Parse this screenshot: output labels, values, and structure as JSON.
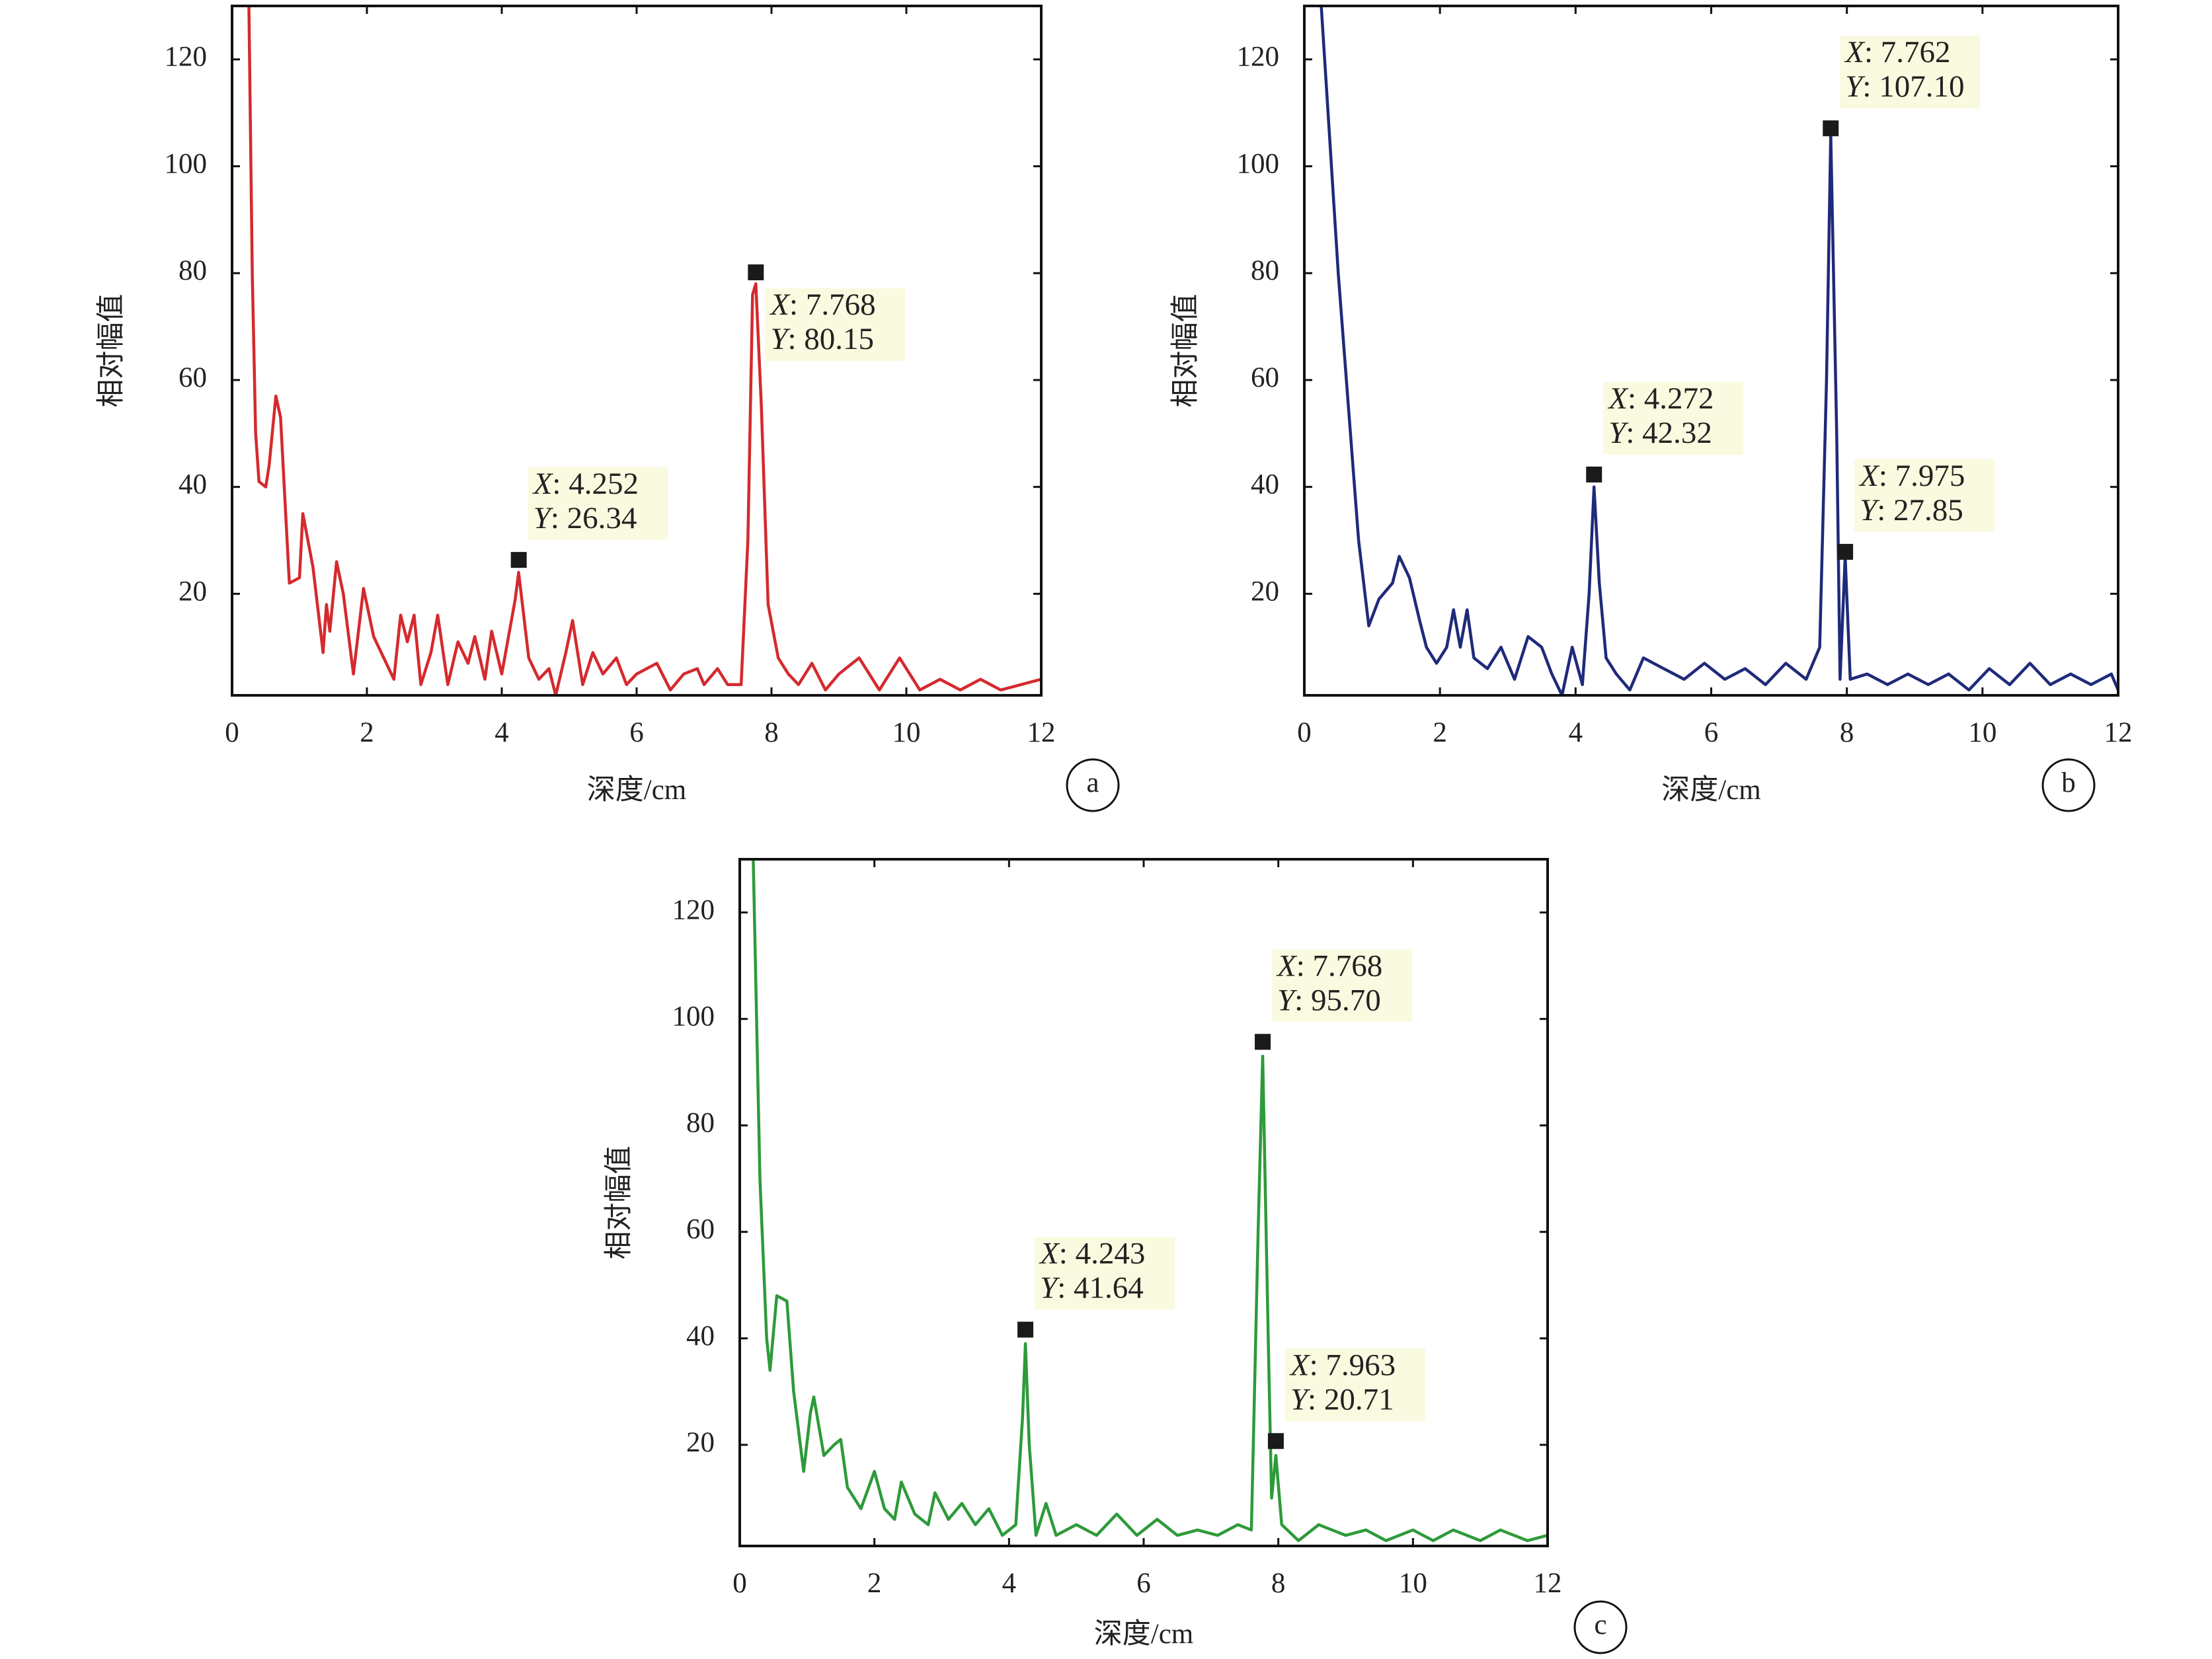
{
  "chart_data": [
    {
      "type": "line",
      "panel_label": "a",
      "x_label": "深度/cm",
      "y_label": "相对幅值",
      "color": "#d42a2e",
      "xlim": [
        0,
        12
      ],
      "ylim": [
        1,
        130
      ],
      "xticks": [
        0,
        2,
        4,
        6,
        8,
        10,
        12
      ],
      "yticks": [
        20,
        40,
        60,
        80,
        100,
        120
      ],
      "x": [
        0.25,
        0.3,
        0.35,
        0.4,
        0.5,
        0.55,
        0.65,
        0.72,
        0.85,
        1.0,
        1.05,
        1.2,
        1.35,
        1.4,
        1.45,
        1.55,
        1.65,
        1.8,
        1.95,
        2.1,
        2.25,
        2.4,
        2.5,
        2.6,
        2.7,
        2.8,
        2.95,
        3.05,
        3.2,
        3.35,
        3.5,
        3.6,
        3.75,
        3.85,
        4.0,
        4.1,
        4.2,
        4.25,
        4.4,
        4.55,
        4.7,
        4.8,
        4.95,
        5.05,
        5.2,
        5.35,
        5.5,
        5.7,
        5.85,
        6.0,
        6.3,
        6.5,
        6.7,
        6.9,
        7.0,
        7.2,
        7.35,
        7.55,
        7.65,
        7.72,
        7.768,
        7.85,
        7.95,
        8.1,
        8.25,
        8.4,
        8.6,
        8.8,
        9.0,
        9.3,
        9.6,
        9.9,
        10.2,
        10.5,
        10.8,
        11.1,
        11.4,
        11.7,
        12.0
      ],
      "values": [
        130,
        80,
        50,
        41,
        40,
        44,
        57,
        53,
        22,
        23,
        35,
        25,
        9,
        18,
        13,
        26,
        20,
        5,
        21,
        12,
        8,
        4,
        16,
        11,
        16,
        3,
        9,
        16,
        3,
        11,
        7,
        12,
        4,
        13,
        5,
        12,
        19,
        24,
        8,
        4,
        6,
        1,
        9,
        15,
        3,
        9,
        5,
        8,
        3,
        5,
        7,
        2,
        5,
        6,
        3,
        6,
        3,
        3,
        30,
        76,
        78,
        55,
        18,
        8,
        5,
        3,
        7,
        2,
        5,
        8,
        2,
        8,
        2,
        4,
        2,
        4,
        2,
        3,
        4
      ],
      "annotations": [
        {
          "x": 4.252,
          "y": 26.34,
          "label": [
            "X: 4.252",
            "Y: 26.34"
          ]
        },
        {
          "x": 7.768,
          "y": 80.15,
          "label": [
            "X: 7.768",
            "Y: 80.15"
          ]
        }
      ]
    },
    {
      "type": "line",
      "panel_label": "b",
      "x_label": "深度/cm",
      "y_label": "相对幅值",
      "color": "#1f2a7a",
      "xlim": [
        0,
        12
      ],
      "ylim": [
        1,
        130
      ],
      "xticks": [
        0,
        2,
        4,
        6,
        8,
        10,
        12
      ],
      "yticks": [
        20,
        40,
        60,
        80,
        100,
        120
      ],
      "x": [
        0.25,
        0.35,
        0.5,
        0.65,
        0.8,
        0.95,
        1.1,
        1.3,
        1.4,
        1.55,
        1.7,
        1.8,
        1.95,
        2.1,
        2.2,
        2.3,
        2.4,
        2.5,
        2.7,
        2.9,
        3.1,
        3.3,
        3.5,
        3.65,
        3.8,
        3.95,
        4.1,
        4.2,
        4.272,
        4.35,
        4.45,
        4.6,
        4.8,
        5.0,
        5.3,
        5.6,
        5.9,
        6.2,
        6.5,
        6.8,
        7.1,
        7.4,
        7.6,
        7.7,
        7.762,
        7.85,
        7.9,
        7.975,
        8.05,
        8.3,
        8.6,
        8.9,
        9.2,
        9.5,
        9.8,
        10.1,
        10.4,
        10.7,
        11.0,
        11.3,
        11.6,
        11.9,
        12.0
      ],
      "values": [
        130,
        110,
        80,
        55,
        30,
        14,
        19,
        22,
        27,
        23,
        15,
        10,
        7,
        10,
        17,
        10,
        17,
        8,
        6,
        10,
        4,
        12,
        10,
        5,
        1,
        10,
        3,
        20,
        40,
        22,
        8,
        5,
        2,
        8,
        6,
        4,
        7,
        4,
        6,
        3,
        7,
        4,
        10,
        60,
        106,
        50,
        4,
        27,
        4,
        5,
        3,
        5,
        3,
        5,
        2,
        6,
        3,
        7,
        3,
        5,
        3,
        5,
        2
      ],
      "annotations": [
        {
          "x": 4.272,
          "y": 42.32,
          "label": [
            "X: 4.272",
            "Y: 42.32"
          ]
        },
        {
          "x": 7.762,
          "y": 107.1,
          "label": [
            "X: 7.762",
            "Y: 107.10"
          ]
        },
        {
          "x": 7.975,
          "y": 27.85,
          "label": [
            "X: 7.975",
            "Y: 27.85"
          ]
        }
      ]
    },
    {
      "type": "line",
      "panel_label": "c",
      "x_label": "深度/cm",
      "y_label": "相对幅值",
      "color": "#2e9a3a",
      "xlim": [
        0,
        12
      ],
      "ylim": [
        1,
        130
      ],
      "xticks": [
        0,
        2,
        4,
        6,
        8,
        10,
        12
      ],
      "yticks": [
        20,
        40,
        60,
        80,
        100,
        120
      ],
      "x": [
        0.2,
        0.3,
        0.4,
        0.45,
        0.55,
        0.7,
        0.8,
        0.95,
        1.05,
        1.1,
        1.25,
        1.4,
        1.5,
        1.6,
        1.8,
        2.0,
        2.15,
        2.3,
        2.4,
        2.6,
        2.8,
        2.9,
        3.1,
        3.3,
        3.5,
        3.7,
        3.9,
        4.1,
        4.2,
        4.243,
        4.3,
        4.4,
        4.55,
        4.7,
        5.0,
        5.3,
        5.6,
        5.9,
        6.2,
        6.5,
        6.8,
        7.1,
        7.4,
        7.6,
        7.7,
        7.768,
        7.85,
        7.9,
        7.963,
        8.05,
        8.3,
        8.6,
        9.0,
        9.3,
        9.6,
        10.0,
        10.3,
        10.6,
        11.0,
        11.3,
        11.7,
        12.0
      ],
      "values": [
        130,
        70,
        40,
        34,
        48,
        47,
        30,
        15,
        26,
        29,
        18,
        20,
        21,
        12,
        8,
        15,
        8,
        6,
        13,
        7,
        5,
        11,
        6,
        9,
        5,
        8,
        3,
        5,
        25,
        39,
        20,
        3,
        9,
        3,
        5,
        3,
        7,
        3,
        6,
        3,
        4,
        3,
        5,
        4,
        60,
        93,
        40,
        10,
        18,
        5,
        2,
        5,
        3,
        4,
        2,
        4,
        2,
        4,
        2,
        4,
        2,
        3
      ],
      "annotations": [
        {
          "x": 4.243,
          "y": 41.64,
          "label": [
            "X: 4.243",
            "Y: 41.64"
          ]
        },
        {
          "x": 7.768,
          "y": 95.7,
          "label": [
            "X: 7.768",
            "Y: 95.70"
          ]
        },
        {
          "x": 7.963,
          "y": 20.71,
          "label": [
            "X: 7.963",
            "Y: 20.71"
          ]
        }
      ]
    }
  ]
}
